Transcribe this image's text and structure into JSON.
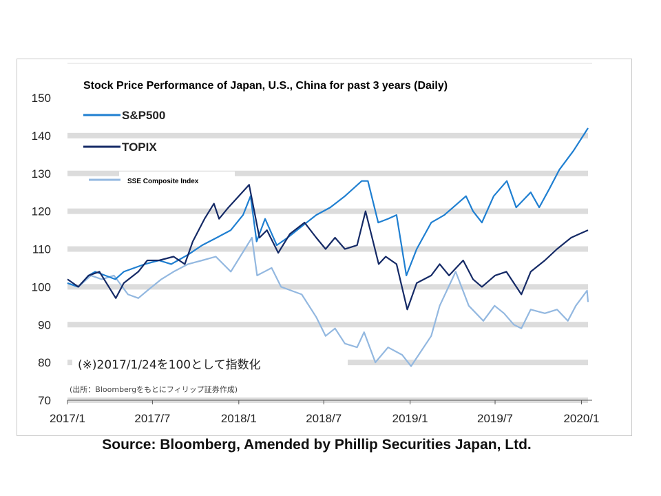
{
  "chart_data": {
    "type": "line",
    "title": "Stock Price Performance of Japan, U.S., China for past 3 years (Daily)",
    "xlabel": "",
    "ylabel": "",
    "x_range": [
      "2017-01-01",
      "2020-01-15"
    ],
    "xticks": [
      {
        "date": "2017-01-01",
        "label": "2017/1"
      },
      {
        "date": "2017-07-01",
        "label": "2017/7"
      },
      {
        "date": "2018-01-01",
        "label": "2018/1"
      },
      {
        "date": "2018-07-01",
        "label": "2018/7"
      },
      {
        "date": "2019-01-01",
        "label": "2019/1"
      },
      {
        "date": "2019-07-01",
        "label": "2019/7"
      },
      {
        "date": "2020-01-01",
        "label": "2020/1"
      }
    ],
    "ylim": [
      70,
      150
    ],
    "yticks": [
      70,
      80,
      90,
      100,
      110,
      120,
      130,
      140,
      150
    ],
    "grid": "horizontal bands",
    "legend_position": "top-left",
    "annotation": "(※)2017/1/24を100として指数化",
    "note": "(出所：Bloombergをもとにフィリップ証券作成)",
    "series": [
      {
        "name": "S&P500",
        "color": "#1f7fd1",
        "points": [
          [
            "2017-01-01",
            101
          ],
          [
            "2017-01-24",
            100
          ],
          [
            "2017-02-15",
            103
          ],
          [
            "2017-03-01",
            104
          ],
          [
            "2017-04-13",
            102
          ],
          [
            "2017-05-01",
            104
          ],
          [
            "2017-06-15",
            106
          ],
          [
            "2017-07-15",
            107
          ],
          [
            "2017-08-10",
            106
          ],
          [
            "2017-09-15",
            108.5
          ],
          [
            "2017-10-15",
            111
          ],
          [
            "2017-11-15",
            113
          ],
          [
            "2017-12-15",
            115
          ],
          [
            "2018-01-10",
            119
          ],
          [
            "2018-01-26",
            124
          ],
          [
            "2018-02-08",
            112
          ],
          [
            "2018-02-26",
            118
          ],
          [
            "2018-03-23",
            111
          ],
          [
            "2018-04-15",
            113
          ],
          [
            "2018-05-15",
            116
          ],
          [
            "2018-06-15",
            119
          ],
          [
            "2018-07-15",
            121
          ],
          [
            "2018-08-15",
            124
          ],
          [
            "2018-09-20",
            128
          ],
          [
            "2018-10-03",
            128
          ],
          [
            "2018-10-25",
            117
          ],
          [
            "2018-11-15",
            118
          ],
          [
            "2018-12-03",
            119
          ],
          [
            "2018-12-24",
            103
          ],
          [
            "2019-01-15",
            110
          ],
          [
            "2019-02-15",
            117
          ],
          [
            "2019-03-15",
            119
          ],
          [
            "2019-04-30",
            124
          ],
          [
            "2019-05-15",
            120
          ],
          [
            "2019-06-03",
            117
          ],
          [
            "2019-06-28",
            124
          ],
          [
            "2019-07-26",
            128
          ],
          [
            "2019-08-15",
            121
          ],
          [
            "2019-09-15",
            125
          ],
          [
            "2019-10-03",
            121
          ],
          [
            "2019-10-25",
            126
          ],
          [
            "2019-11-15",
            131
          ],
          [
            "2019-12-15",
            136
          ],
          [
            "2020-01-10",
            141
          ],
          [
            "2020-01-15",
            142
          ]
        ]
      },
      {
        "name": "TOPIX",
        "color": "#152a66",
        "points": [
          [
            "2017-01-01",
            102
          ],
          [
            "2017-01-24",
            100
          ],
          [
            "2017-02-15",
            103
          ],
          [
            "2017-03-10",
            104
          ],
          [
            "2017-04-14",
            97
          ],
          [
            "2017-05-01",
            101
          ],
          [
            "2017-06-01",
            104
          ],
          [
            "2017-06-20",
            107
          ],
          [
            "2017-07-15",
            107
          ],
          [
            "2017-08-15",
            108
          ],
          [
            "2017-09-08",
            106
          ],
          [
            "2017-09-25",
            112
          ],
          [
            "2017-10-20",
            118
          ],
          [
            "2017-11-09",
            122
          ],
          [
            "2017-11-20",
            118
          ],
          [
            "2017-12-10",
            121
          ],
          [
            "2018-01-23",
            127
          ],
          [
            "2018-02-14",
            113
          ],
          [
            "2018-03-02",
            115
          ],
          [
            "2018-03-26",
            109
          ],
          [
            "2018-04-20",
            114
          ],
          [
            "2018-05-21",
            117
          ],
          [
            "2018-06-15",
            113
          ],
          [
            "2018-07-05",
            110
          ],
          [
            "2018-07-25",
            113
          ],
          [
            "2018-08-15",
            110
          ],
          [
            "2018-09-10",
            111
          ],
          [
            "2018-09-28",
            120
          ],
          [
            "2018-10-26",
            106
          ],
          [
            "2018-11-10",
            108
          ],
          [
            "2018-12-03",
            106
          ],
          [
            "2018-12-26",
            94
          ],
          [
            "2019-01-15",
            101
          ],
          [
            "2019-02-15",
            103
          ],
          [
            "2019-03-05",
            106
          ],
          [
            "2019-03-25",
            103
          ],
          [
            "2019-04-24",
            107
          ],
          [
            "2019-05-15",
            102
          ],
          [
            "2019-06-03",
            100
          ],
          [
            "2019-07-01",
            103
          ],
          [
            "2019-07-25",
            104
          ],
          [
            "2019-08-26",
            98
          ],
          [
            "2019-09-15",
            104
          ],
          [
            "2019-10-15",
            107
          ],
          [
            "2019-11-10",
            110
          ],
          [
            "2019-12-10",
            113
          ],
          [
            "2019-12-28",
            114
          ],
          [
            "2020-01-15",
            115
          ]
        ]
      },
      {
        "name": "SSE Composite Index",
        "color": "#93b8e0",
        "points": [
          [
            "2017-01-01",
            101
          ],
          [
            "2017-01-24",
            100
          ],
          [
            "2017-02-20",
            103
          ],
          [
            "2017-03-15",
            102
          ],
          [
            "2017-04-10",
            103
          ],
          [
            "2017-05-10",
            98
          ],
          [
            "2017-06-01",
            97
          ],
          [
            "2017-06-20",
            99
          ],
          [
            "2017-07-20",
            102
          ],
          [
            "2017-08-15",
            104
          ],
          [
            "2017-09-15",
            106
          ],
          [
            "2017-10-15",
            107
          ],
          [
            "2017-11-13",
            108
          ],
          [
            "2017-12-15",
            104
          ],
          [
            "2018-01-29",
            113
          ],
          [
            "2018-02-09",
            103
          ],
          [
            "2018-03-12",
            105
          ],
          [
            "2018-04-01",
            100
          ],
          [
            "2018-05-15",
            98
          ],
          [
            "2018-06-15",
            92
          ],
          [
            "2018-07-05",
            87
          ],
          [
            "2018-07-25",
            89
          ],
          [
            "2018-08-15",
            85
          ],
          [
            "2018-09-10",
            84
          ],
          [
            "2018-09-25",
            88
          ],
          [
            "2018-10-19",
            80
          ],
          [
            "2018-11-15",
            84
          ],
          [
            "2018-12-15",
            82
          ],
          [
            "2019-01-03",
            79
          ],
          [
            "2019-02-15",
            87
          ],
          [
            "2019-03-05",
            95
          ],
          [
            "2019-04-08",
            104
          ],
          [
            "2019-05-06",
            95
          ],
          [
            "2019-06-06",
            91
          ],
          [
            "2019-06-30",
            95
          ],
          [
            "2019-07-20",
            93
          ],
          [
            "2019-08-10",
            90
          ],
          [
            "2019-08-26",
            89
          ],
          [
            "2019-09-15",
            94
          ],
          [
            "2019-10-15",
            93
          ],
          [
            "2019-11-10",
            94
          ],
          [
            "2019-12-03",
            91
          ],
          [
            "2019-12-20",
            95
          ],
          [
            "2020-01-13",
            99
          ],
          [
            "2020-01-15",
            96
          ]
        ]
      }
    ]
  },
  "source_text": "Source: Bloomberg, Amended by Phillip Securities Japan, Ltd."
}
